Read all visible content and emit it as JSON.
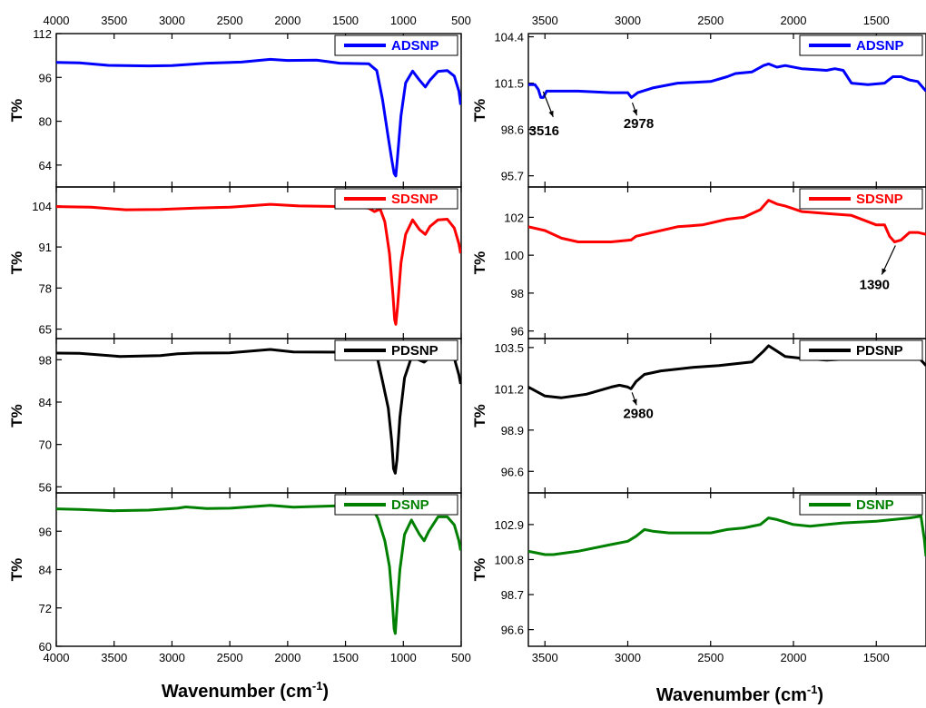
{
  "chart_data": [
    {
      "type": "line",
      "panel": "left-1",
      "xlim": [
        4000,
        500
      ],
      "ylim": [
        56,
        112
      ],
      "yticks": [
        "112",
        "96",
        "80",
        "64"
      ],
      "ylabel": "T%",
      "legend": "ADSNP",
      "color": "#0000ff",
      "legend_position": "top-right",
      "points": [
        [
          4000,
          101.5
        ],
        [
          3800,
          101.3
        ],
        [
          3550,
          100.4
        ],
        [
          3200,
          100.2
        ],
        [
          3000,
          100.3
        ],
        [
          2700,
          101.2
        ],
        [
          2400,
          101.6
        ],
        [
          2150,
          102.6
        ],
        [
          2000,
          102.2
        ],
        [
          1750,
          102.3
        ],
        [
          1550,
          101.2
        ],
        [
          1300,
          101.0
        ],
        [
          1230,
          98.5
        ],
        [
          1180,
          88
        ],
        [
          1130,
          74
        ],
        [
          1100,
          66
        ],
        [
          1080,
          61
        ],
        [
          1065,
          60
        ],
        [
          1050,
          67
        ],
        [
          1020,
          82
        ],
        [
          980,
          94
        ],
        [
          920,
          98.3
        ],
        [
          860,
          95
        ],
        [
          810,
          92.5
        ],
        [
          770,
          95
        ],
        [
          700,
          98.2
        ],
        [
          620,
          98.5
        ],
        [
          560,
          96.5
        ],
        [
          520,
          91
        ],
        [
          505,
          86
        ]
      ]
    },
    {
      "type": "line",
      "panel": "left-2",
      "xlim": [
        4000,
        500
      ],
      "ylim": [
        62,
        110
      ],
      "yticks": [
        "104",
        "91",
        "78",
        "65"
      ],
      "ylabel": "T%",
      "legend": "SDSNP",
      "color": "#ff0000",
      "legend_position": "top-right",
      "points": [
        [
          4000,
          103.8
        ],
        [
          3700,
          103.6
        ],
        [
          3400,
          102.8
        ],
        [
          3100,
          102.9
        ],
        [
          2800,
          103.3
        ],
        [
          2500,
          103.6
        ],
        [
          2150,
          104.5
        ],
        [
          1900,
          104.0
        ],
        [
          1500,
          103.8
        ],
        [
          1300,
          103.3
        ],
        [
          1250,
          102.2
        ],
        [
          1200,
          103.0
        ],
        [
          1160,
          99
        ],
        [
          1120,
          89
        ],
        [
          1090,
          76
        ],
        [
          1075,
          68
        ],
        [
          1065,
          66.5
        ],
        [
          1050,
          72
        ],
        [
          1020,
          86
        ],
        [
          980,
          95
        ],
        [
          920,
          99.6
        ],
        [
          860,
          96.5
        ],
        [
          810,
          95
        ],
        [
          770,
          97.5
        ],
        [
          700,
          99.6
        ],
        [
          620,
          99.8
        ],
        [
          560,
          97
        ],
        [
          520,
          92
        ],
        [
          505,
          89
        ]
      ]
    },
    {
      "type": "line",
      "panel": "left-3",
      "xlim": [
        4000,
        500
      ],
      "ylim": [
        54,
        105
      ],
      "yticks": [
        "98",
        "84",
        "70",
        "56"
      ],
      "ylabel": "T%",
      "legend": "PDSNP",
      "color": "#000000",
      "legend_position": "top-right",
      "points": [
        [
          4000,
          100.2
        ],
        [
          3800,
          100.1
        ],
        [
          3450,
          99.1
        ],
        [
          3100,
          99.4
        ],
        [
          2950,
          100.0
        ],
        [
          2800,
          100.2
        ],
        [
          2500,
          100.3
        ],
        [
          2150,
          101.4
        ],
        [
          1950,
          100.6
        ],
        [
          1500,
          100.5
        ],
        [
          1300,
          100.4
        ],
        [
          1230,
          99.5
        ],
        [
          1180,
          91
        ],
        [
          1130,
          82
        ],
        [
          1100,
          71
        ],
        [
          1085,
          62
        ],
        [
          1070,
          60.5
        ],
        [
          1055,
          65
        ],
        [
          1030,
          79
        ],
        [
          990,
          92
        ],
        [
          930,
          98.8
        ],
        [
          870,
          98
        ],
        [
          820,
          97.2
        ],
        [
          780,
          98.5
        ],
        [
          700,
          101.5
        ],
        [
          620,
          101.5
        ],
        [
          560,
          98.5
        ],
        [
          520,
          93
        ],
        [
          505,
          90
        ]
      ]
    },
    {
      "type": "line",
      "panel": "left-4",
      "xlim": [
        4000,
        500
      ],
      "ylim": [
        60,
        108
      ],
      "yticks": [
        "96",
        "84",
        "72",
        "60"
      ],
      "ylabel": "T%",
      "legend": "DSNP",
      "color": "#008000",
      "legend_position": "top-right",
      "points": [
        [
          4000,
          103.0
        ],
        [
          3800,
          102.8
        ],
        [
          3500,
          102.4
        ],
        [
          3200,
          102.6
        ],
        [
          2950,
          103.2
        ],
        [
          2880,
          103.6
        ],
        [
          2700,
          103.1
        ],
        [
          2500,
          103.2
        ],
        [
          2150,
          104.1
        ],
        [
          1950,
          103.5
        ],
        [
          1600,
          103.9
        ],
        [
          1350,
          104.4
        ],
        [
          1280,
          104.0
        ],
        [
          1220,
          100
        ],
        [
          1160,
          93
        ],
        [
          1120,
          85
        ],
        [
          1095,
          74
        ],
        [
          1080,
          65.5
        ],
        [
          1070,
          64
        ],
        [
          1055,
          72
        ],
        [
          1030,
          84
        ],
        [
          990,
          95
        ],
        [
          930,
          99.5
        ],
        [
          860,
          95
        ],
        [
          820,
          93
        ],
        [
          780,
          96
        ],
        [
          700,
          100.5
        ],
        [
          620,
          100.5
        ],
        [
          560,
          98
        ],
        [
          520,
          93
        ],
        [
          505,
          90
        ]
      ]
    },
    {
      "type": "line",
      "panel": "right-1",
      "xlim": [
        3600,
        1200
      ],
      "ylim": [
        95.0,
        104.6
      ],
      "yticks": [
        "104.4",
        "101.5",
        "98.6",
        "95.7"
      ],
      "ylabel": "T%",
      "legend": "ADSNP",
      "color": "#0000ff",
      "legend_position": "top-right",
      "annotations": [
        {
          "text": "3516",
          "x": 3516,
          "y": 101.2
        },
        {
          "text": "2978",
          "x": 2978,
          "y": 100.5
        }
      ],
      "points": [
        [
          3600,
          101.4
        ],
        [
          3560,
          101.4
        ],
        [
          3540,
          101.1
        ],
        [
          3525,
          100.6
        ],
        [
          3510,
          100.6
        ],
        [
          3490,
          101.0
        ],
        [
          3450,
          101.0
        ],
        [
          3300,
          101.0
        ],
        [
          3100,
          100.9
        ],
        [
          3000,
          100.9
        ],
        [
          2978,
          100.6
        ],
        [
          2940,
          100.9
        ],
        [
          2850,
          101.2
        ],
        [
          2700,
          101.5
        ],
        [
          2500,
          101.6
        ],
        [
          2400,
          101.9
        ],
        [
          2350,
          102.1
        ],
        [
          2250,
          102.2
        ],
        [
          2180,
          102.6
        ],
        [
          2150,
          102.7
        ],
        [
          2100,
          102.5
        ],
        [
          2050,
          102.6
        ],
        [
          1950,
          102.4
        ],
        [
          1800,
          102.3
        ],
        [
          1750,
          102.4
        ],
        [
          1700,
          102.3
        ],
        [
          1650,
          101.5
        ],
        [
          1550,
          101.4
        ],
        [
          1450,
          101.5
        ],
        [
          1400,
          101.9
        ],
        [
          1350,
          101.9
        ],
        [
          1300,
          101.7
        ],
        [
          1250,
          101.6
        ],
        [
          1200,
          101.0
        ]
      ]
    },
    {
      "type": "line",
      "panel": "right-2",
      "xlim": [
        3600,
        1200
      ],
      "ylim": [
        95.6,
        103.6
      ],
      "yticks": [
        "102",
        "100",
        "98",
        "96"
      ],
      "ylabel": "T%",
      "legend": "SDSNP",
      "color": "#ff0000",
      "legend_position": "top-right",
      "annotations": [
        {
          "text": "1390",
          "x": 1390,
          "y": 100.7
        }
      ],
      "points": [
        [
          3600,
          101.5
        ],
        [
          3500,
          101.3
        ],
        [
          3400,
          100.9
        ],
        [
          3300,
          100.7
        ],
        [
          3100,
          100.7
        ],
        [
          2980,
          100.8
        ],
        [
          2950,
          101.0
        ],
        [
          2850,
          101.2
        ],
        [
          2700,
          101.5
        ],
        [
          2550,
          101.6
        ],
        [
          2400,
          101.9
        ],
        [
          2300,
          102.0
        ],
        [
          2200,
          102.4
        ],
        [
          2150,
          102.9
        ],
        [
          2100,
          102.7
        ],
        [
          2050,
          102.6
        ],
        [
          1950,
          102.3
        ],
        [
          1800,
          102.2
        ],
        [
          1650,
          102.1
        ],
        [
          1500,
          101.6
        ],
        [
          1450,
          101.6
        ],
        [
          1420,
          101.0
        ],
        [
          1390,
          100.7
        ],
        [
          1350,
          100.8
        ],
        [
          1300,
          101.2
        ],
        [
          1250,
          101.2
        ],
        [
          1200,
          101.1
        ]
      ]
    },
    {
      "type": "line",
      "panel": "right-3",
      "xlim": [
        3600,
        1200
      ],
      "ylim": [
        95.4,
        104.0
      ],
      "yticks": [
        "103.5",
        "101.2",
        "98.9",
        "96.6"
      ],
      "ylabel": "T%",
      "legend": "PDSNP",
      "color": "#000000",
      "legend_position": "top-right",
      "annotations": [
        {
          "text": "2980",
          "x": 2980,
          "y": 101.2
        }
      ],
      "points": [
        [
          3600,
          101.3
        ],
        [
          3500,
          100.8
        ],
        [
          3400,
          100.7
        ],
        [
          3250,
          100.9
        ],
        [
          3100,
          101.3
        ],
        [
          3050,
          101.4
        ],
        [
          3000,
          101.3
        ],
        [
          2980,
          101.2
        ],
        [
          2950,
          101.6
        ],
        [
          2900,
          102.0
        ],
        [
          2800,
          102.2
        ],
        [
          2700,
          102.3
        ],
        [
          2600,
          102.4
        ],
        [
          2450,
          102.5
        ],
        [
          2350,
          102.6
        ],
        [
          2250,
          102.7
        ],
        [
          2180,
          103.3
        ],
        [
          2150,
          103.6
        ],
        [
          2100,
          103.3
        ],
        [
          2050,
          103.0
        ],
        [
          1950,
          102.9
        ],
        [
          1800,
          102.8
        ],
        [
          1600,
          102.9
        ],
        [
          1400,
          102.9
        ],
        [
          1300,
          103.0
        ],
        [
          1250,
          103.0
        ],
        [
          1200,
          102.5
        ]
      ]
    },
    {
      "type": "line",
      "panel": "right-4",
      "xlim": [
        3600,
        1200
      ],
      "ylim": [
        95.6,
        104.8
      ],
      "yticks": [
        "102.9",
        "100.8",
        "98.7",
        "96.6"
      ],
      "ylabel": "T%",
      "legend": "DSNP",
      "color": "#008000",
      "legend_position": "top-right",
      "points": [
        [
          3600,
          101.3
        ],
        [
          3550,
          101.2
        ],
        [
          3500,
          101.1
        ],
        [
          3450,
          101.1
        ],
        [
          3300,
          101.3
        ],
        [
          3100,
          101.7
        ],
        [
          3000,
          101.9
        ],
        [
          2950,
          102.2
        ],
        [
          2900,
          102.6
        ],
        [
          2850,
          102.5
        ],
        [
          2750,
          102.4
        ],
        [
          2650,
          102.4
        ],
        [
          2500,
          102.4
        ],
        [
          2400,
          102.6
        ],
        [
          2300,
          102.7
        ],
        [
          2200,
          102.9
        ],
        [
          2150,
          103.3
        ],
        [
          2100,
          103.2
        ],
        [
          2000,
          102.9
        ],
        [
          1900,
          102.8
        ],
        [
          1800,
          102.9
        ],
        [
          1700,
          103.0
        ],
        [
          1500,
          103.1
        ],
        [
          1300,
          103.3
        ],
        [
          1230,
          103.4
        ],
        [
          1210,
          102.0
        ],
        [
          1200,
          101.0
        ]
      ]
    }
  ],
  "axes": {
    "left": {
      "xticks": [
        "4000",
        "3500",
        "3000",
        "2500",
        "2000",
        "1500",
        "1000",
        "500"
      ],
      "xlabel": "Wavenumber (cm",
      "xlabel_sup": "-1",
      "xlabel_tail": ")"
    },
    "right": {
      "xticks": [
        "3500",
        "3000",
        "2500",
        "2000",
        "1500"
      ],
      "xlabel": "Wavenumber (cm",
      "xlabel_sup": "-1",
      "xlabel_tail": ")"
    }
  }
}
